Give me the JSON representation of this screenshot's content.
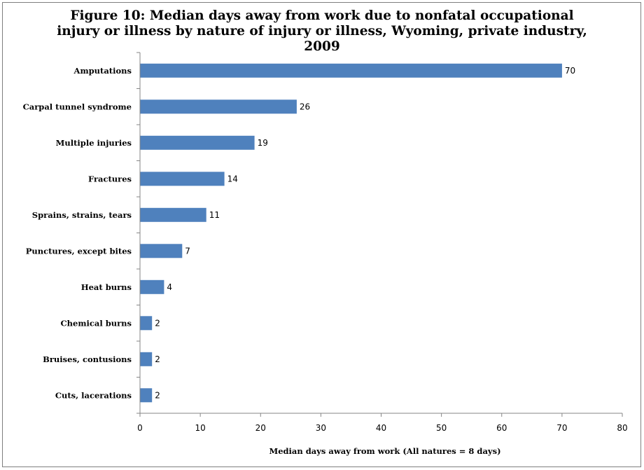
{
  "chart_data": {
    "type": "bar",
    "orientation": "horizontal",
    "title_lines": [
      "Figure 10: Median days away from work due to nonfatal occupational",
      "injury or illness by nature of injury or illness, Wyoming, private industry,",
      "2009"
    ],
    "categories": [
      "Amputations",
      "Carpal tunnel syndrome",
      "Multiple injuries",
      "Fractures",
      "Sprains, strains, tears",
      "Punctures, except bites",
      "Heat burns",
      "Chemical burns",
      "Bruises, contusions",
      "Cuts, lacerations"
    ],
    "values": [
      70,
      26,
      19,
      14,
      11,
      7,
      4,
      2,
      2,
      2
    ],
    "xlabel": "Median days away from work (All natures = 8 days)",
    "ylabel": "",
    "xlim": [
      0,
      80
    ],
    "xticks": [
      0,
      10,
      20,
      30,
      40,
      50,
      60,
      70,
      80
    ],
    "bar_color": "#4f81bd",
    "grid": false,
    "legend": "none"
  }
}
